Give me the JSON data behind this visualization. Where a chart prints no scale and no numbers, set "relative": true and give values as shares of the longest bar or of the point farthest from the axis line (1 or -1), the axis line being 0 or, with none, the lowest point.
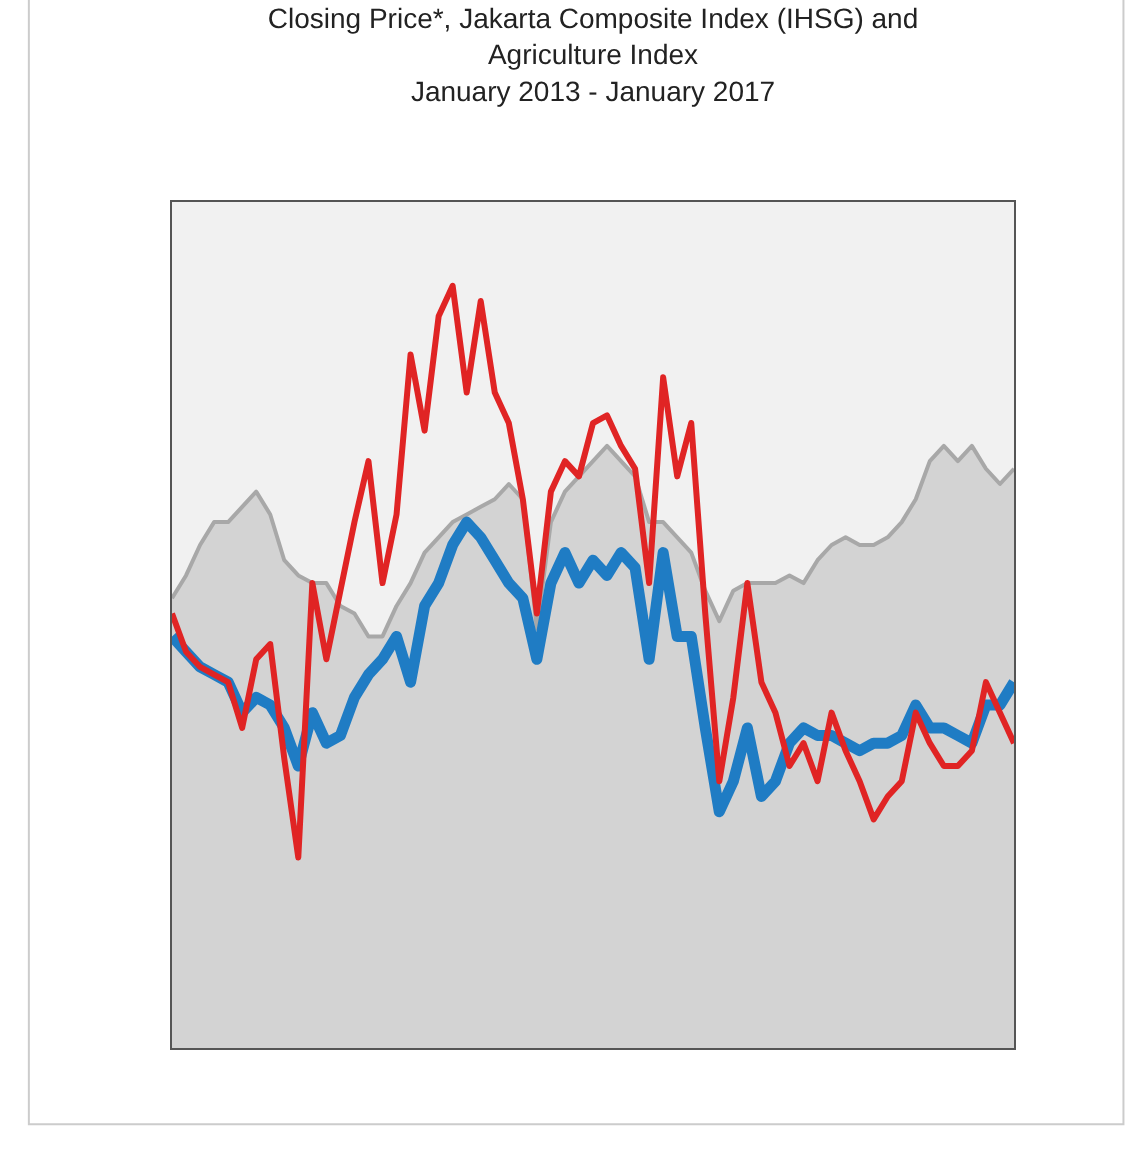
{
  "chart_data": {
    "type": "line",
    "title": "Closing Price*, Jakarta Composite Index (IHSG) and Agriculture Index",
    "subtitle": "January 2013 - January 2017",
    "relative": true,
    "categories": [
      null,
      null,
      null,
      null,
      null,
      null,
      null,
      null,
      null,
      null,
      null,
      null,
      null,
      null,
      null,
      null,
      null,
      null,
      null,
      null,
      null,
      null,
      null,
      null,
      null,
      null,
      null,
      null,
      null,
      null,
      null,
      null,
      null,
      null,
      null,
      null,
      null,
      null,
      null,
      null,
      null,
      null,
      null,
      null,
      null,
      null,
      null,
      null,
      null,
      null,
      null,
      null,
      null,
      null,
      null,
      null,
      null,
      null,
      null,
      null,
      null
    ],
    "series": [
      {
        "type": "area",
        "color": "#a8a8a8",
        "values": [
          0.59,
          0.62,
          0.66,
          0.69,
          0.69,
          0.71,
          0.73,
          0.7,
          0.64,
          0.62,
          0.61,
          0.61,
          0.58,
          0.57,
          0.54,
          0.54,
          0.58,
          0.61,
          0.65,
          0.67,
          0.69,
          0.7,
          0.71,
          0.72,
          0.74,
          0.72,
          0.55,
          0.69,
          0.73,
          0.75,
          0.77,
          0.79,
          0.77,
          0.75,
          0.69,
          0.69,
          0.67,
          0.65,
          0.6,
          0.56,
          0.6,
          0.61,
          0.61,
          0.61,
          0.62,
          0.61,
          0.64,
          0.66,
          0.67,
          0.66,
          0.66,
          0.67,
          0.69,
          0.72,
          0.77,
          0.79,
          0.77,
          0.79,
          0.76,
          0.74,
          0.76
        ]
      },
      {
        "color": "#1f7cc4",
        "values": [
          0.54,
          0.52,
          0.5,
          0.49,
          0.48,
          0.44,
          0.46,
          0.45,
          0.42,
          0.37,
          0.44,
          0.4,
          0.41,
          0.46,
          0.49,
          0.51,
          0.54,
          0.48,
          0.58,
          0.61,
          0.66,
          0.69,
          0.67,
          0.64,
          0.61,
          0.59,
          0.51,
          0.61,
          0.65,
          0.61,
          0.64,
          0.62,
          0.65,
          0.63,
          0.51,
          0.65,
          0.54,
          0.54,
          0.42,
          0.31,
          0.35,
          0.42,
          0.33,
          0.35,
          0.4,
          0.42,
          0.41,
          0.41,
          0.4,
          0.39,
          0.4,
          0.4,
          0.41,
          0.45,
          0.42,
          0.42,
          0.41,
          0.4,
          0.45,
          0.45,
          0.48
        ]
      },
      {
        "color": "#e02424",
        "values": [
          0.57,
          0.52,
          0.5,
          0.49,
          0.48,
          0.42,
          0.51,
          0.53,
          0.38,
          0.25,
          0.61,
          0.51,
          0.6,
          0.69,
          0.77,
          0.61,
          0.7,
          0.91,
          0.81,
          0.96,
          1.0,
          0.86,
          0.98,
          0.86,
          0.82,
          0.72,
          0.57,
          0.73,
          0.77,
          0.75,
          0.82,
          0.83,
          0.79,
          0.76,
          0.61,
          0.88,
          0.75,
          0.82,
          0.57,
          0.35,
          0.46,
          0.61,
          0.48,
          0.44,
          0.37,
          0.4,
          0.35,
          0.44,
          0.39,
          0.35,
          0.3,
          0.33,
          0.35,
          0.44,
          0.4,
          0.37,
          0.37,
          0.39,
          0.48,
          0.44,
          0.4
        ]
      }
    ]
  }
}
